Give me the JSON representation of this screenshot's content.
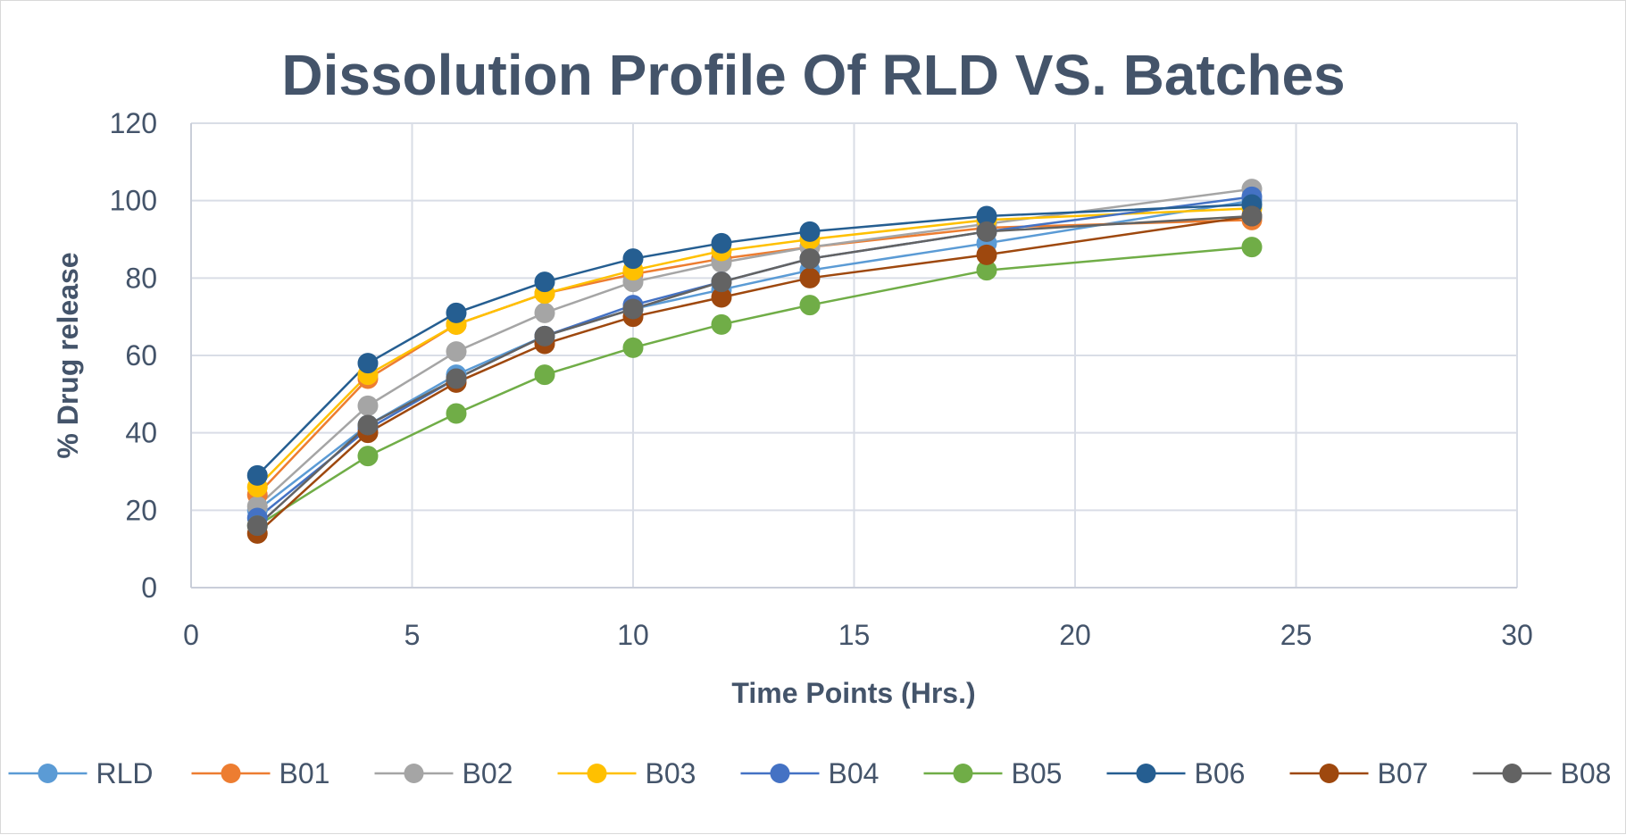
{
  "chart_data": {
    "type": "line",
    "title": "Dissolution Profile Of RLD VS. Batches",
    "xlabel": "Time Points (Hrs.)",
    "ylabel": "% Drug release",
    "xlim": [
      0,
      30
    ],
    "ylim": [
      0,
      120
    ],
    "xticks": [
      0,
      5,
      10,
      15,
      20,
      25,
      30
    ],
    "yticks": [
      0,
      20,
      40,
      60,
      80,
      100,
      120
    ],
    "grid": true,
    "legend_position": "bottom",
    "x": [
      1.5,
      4,
      6,
      8,
      10,
      12,
      14,
      18,
      24
    ],
    "series": [
      {
        "name": "RLD",
        "color": "#5b9bd5",
        "values": [
          20,
          42,
          55,
          65,
          72,
          77,
          82,
          89,
          100
        ]
      },
      {
        "name": "B01",
        "color": "#ed7d31",
        "values": [
          24,
          54,
          68,
          76,
          81,
          85,
          88,
          93,
          95
        ]
      },
      {
        "name": "B02",
        "color": "#a5a5a5",
        "values": [
          21,
          47,
          61,
          71,
          79,
          84,
          88,
          94,
          103
        ]
      },
      {
        "name": "B03",
        "color": "#ffc000",
        "values": [
          26,
          55,
          68,
          76,
          82,
          87,
          90,
          95,
          98
        ]
      },
      {
        "name": "B04",
        "color": "#4472c4",
        "values": [
          18,
          41,
          54,
          65,
          73,
          79,
          85,
          92,
          101
        ]
      },
      {
        "name": "B05",
        "color": "#70ad47",
        "values": [
          16,
          34,
          45,
          55,
          62,
          68,
          73,
          82,
          88
        ]
      },
      {
        "name": "B06",
        "color": "#255e91",
        "values": [
          29,
          58,
          71,
          79,
          85,
          89,
          92,
          96,
          99
        ]
      },
      {
        "name": "B07",
        "color": "#9e480e",
        "values": [
          14,
          40,
          53,
          63,
          70,
          75,
          80,
          86,
          96
        ]
      },
      {
        "name": "B08",
        "color": "#636363",
        "values": [
          16,
          42,
          54,
          65,
          72,
          79,
          85,
          92,
          96
        ]
      }
    ]
  }
}
